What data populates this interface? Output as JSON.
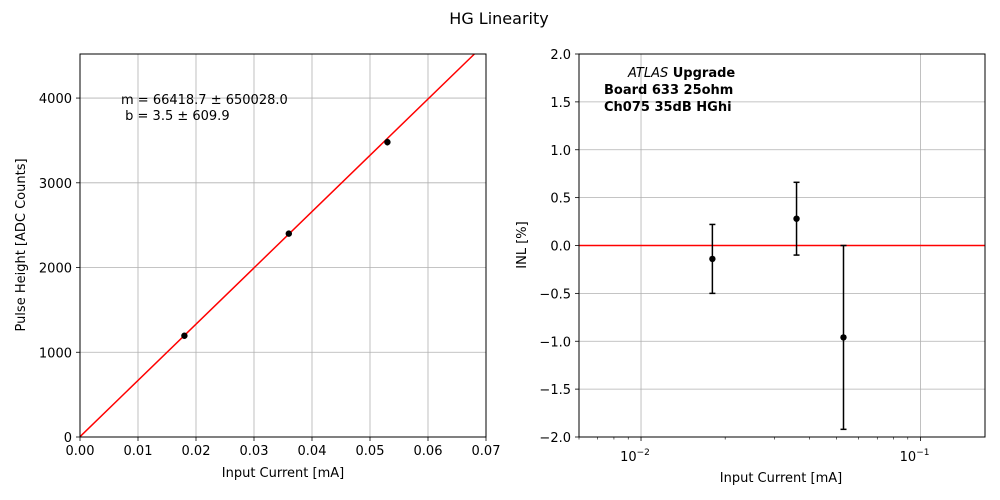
{
  "figure_title": "HG Linearity",
  "chart_data": [
    {
      "type": "scatter",
      "xlabel": "Input Current [mA]",
      "ylabel": "Pulse Height [ADC Counts]",
      "xlim": [
        0.0,
        0.07
      ],
      "ylim": [
        0,
        4520
      ],
      "xticks": [
        0.0,
        0.01,
        0.02,
        0.03,
        0.04,
        0.05,
        0.06,
        0.07
      ],
      "xtick_labels": [
        "0.00",
        "0.01",
        "0.02",
        "0.03",
        "0.04",
        "0.05",
        "0.06",
        "0.07"
      ],
      "yticks": [
        0,
        1000,
        2000,
        3000,
        4000
      ],
      "ytick_labels": [
        "0",
        "1000",
        "2000",
        "3000",
        "4000"
      ],
      "grid": true,
      "points": [
        {
          "x": 0.018,
          "y": 1195,
          "yerr": 15
        },
        {
          "x": 0.036,
          "y": 2400,
          "yerr": 15
        },
        {
          "x": 0.053,
          "y": 3480,
          "yerr": 40
        }
      ],
      "fit_line": {
        "slope": 66418.7,
        "intercept": 3.5,
        "color": "#ff0000"
      },
      "annotation": [
        "m = 66418.7 ± 650028.0",
        " b = 3.5 ± 609.9"
      ],
      "marker_color": "#000000"
    },
    {
      "type": "scatter",
      "xlabel": "Input Current [mA]",
      "ylabel": "INL [%]",
      "xscale": "log",
      "xlim": [
        0.006,
        0.17
      ],
      "ylim": [
        -2.0,
        2.0
      ],
      "xticks": [
        0.01,
        0.1
      ],
      "xtick_labels": [
        "10",
        "10"
      ],
      "xtick_exponents": [
        "−2",
        "−1"
      ],
      "yticks": [
        -2.0,
        -1.5,
        -1.0,
        -0.5,
        0.0,
        0.5,
        1.0,
        1.5,
        2.0
      ],
      "ytick_labels": [
        "−2.0",
        "−1.5",
        "−1.0",
        "−0.5",
        "0.0",
        "0.5",
        "1.0",
        "1.5",
        "2.0"
      ],
      "grid": true,
      "points": [
        {
          "x": 0.018,
          "y": -0.14,
          "yerr": 0.36
        },
        {
          "x": 0.036,
          "y": 0.28,
          "yerr": 0.38
        },
        {
          "x": 0.053,
          "y": -0.96,
          "yerr": 0.96
        }
      ],
      "reference_line": {
        "y": 0.0,
        "color": "#ff0000"
      },
      "annotation": {
        "atlas": "ATLAS",
        "upgrade": " Upgrade",
        "line2": "Board 633 25ohm",
        "line3": "Ch075 35dB HGhi"
      },
      "marker_color": "#000000"
    }
  ]
}
